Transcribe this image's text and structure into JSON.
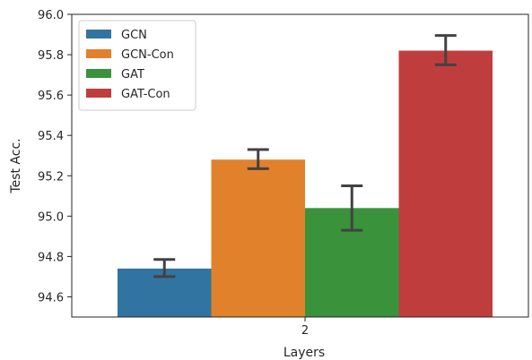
{
  "chart_data": {
    "type": "bar",
    "xlabel": "Layers",
    "ylabel": "Test Acc.",
    "categories": [
      "2"
    ],
    "ylim": [
      94.5,
      96.0
    ],
    "yticks": [
      "94.6",
      "94.8",
      "95.0",
      "95.2",
      "95.4",
      "95.6",
      "95.8",
      "96.0"
    ],
    "grid": false,
    "legend_position": "top-left",
    "series": [
      {
        "name": "GCN",
        "color": "#3274a1",
        "values": [
          94.74
        ],
        "err_low": [
          94.7
        ],
        "err_high": [
          94.785
        ]
      },
      {
        "name": "GCN-Con",
        "color": "#e1812c",
        "values": [
          95.28
        ],
        "err_low": [
          95.235
        ],
        "err_high": [
          95.33
        ]
      },
      {
        "name": "GAT",
        "color": "#3a923a",
        "values": [
          95.04
        ],
        "err_low": [
          94.93
        ],
        "err_high": [
          95.15
        ]
      },
      {
        "name": "GAT-Con",
        "color": "#c03d3e",
        "values": [
          95.82
        ],
        "err_low": [
          95.75
        ],
        "err_high": [
          95.895
        ]
      }
    ]
  }
}
